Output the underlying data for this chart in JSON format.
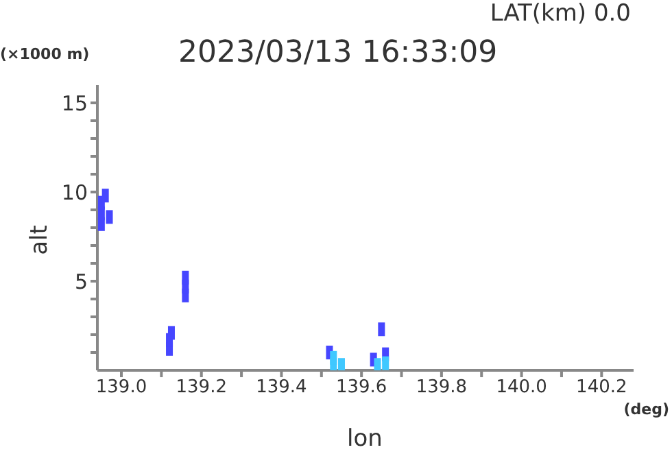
{
  "chart_data": {
    "type": "scatter",
    "title": "2023/03/13 16:33:09",
    "subtitle": "LAT(km) 0.0",
    "xlabel": "lon",
    "ylabel": "alt",
    "annotations": [
      "(×1000 m)",
      "(deg)"
    ],
    "marker": "square",
    "grid": false,
    "legend": false,
    "xlim": [
      138.94,
      140.28
    ],
    "xticks": [
      {
        "value": 139.0,
        "label": "139.0"
      },
      {
        "value": 139.1,
        "label": null
      },
      {
        "value": 139.2,
        "label": "139.2"
      },
      {
        "value": 139.3,
        "label": null
      },
      {
        "value": 139.4,
        "label": "139.4"
      },
      {
        "value": 139.5,
        "label": null
      },
      {
        "value": 139.6,
        "label": "139.6"
      },
      {
        "value": 139.7,
        "label": null
      },
      {
        "value": 139.8,
        "label": "139.8"
      },
      {
        "value": 139.9,
        "label": null
      },
      {
        "value": 140.0,
        "label": "140.0"
      },
      {
        "value": 140.1,
        "label": null
      },
      {
        "value": 140.2,
        "label": "140.2"
      }
    ],
    "ylim": [
      0,
      16
    ],
    "yticks": [
      {
        "value": 1,
        "label": null
      },
      {
        "value": 2,
        "label": null
      },
      {
        "value": 3,
        "label": null
      },
      {
        "value": 4,
        "label": null
      },
      5,
      {
        "value": 6,
        "label": null
      },
      {
        "value": 7,
        "label": null
      },
      {
        "value": 8,
        "label": null
      },
      {
        "value": 9,
        "label": null
      },
      10,
      {
        "value": 11,
        "label": null
      },
      {
        "value": 12,
        "label": null
      },
      {
        "value": 13,
        "label": null
      },
      {
        "value": 14,
        "label": null
      },
      15
    ],
    "series": [
      {
        "color": "#4646ff",
        "x": [
          138.95,
          138.95,
          138.95,
          138.96,
          138.97,
          139.12,
          139.12,
          139.125,
          139.16,
          139.16,
          139.16,
          139.65,
          139.52,
          139.63,
          139.66
        ],
        "values": [
          8.2,
          8.8,
          9.4,
          9.8,
          8.6,
          1.2,
          1.7,
          2.1,
          4.2,
          4.7,
          5.2,
          2.3,
          1.0,
          0.6,
          0.9
        ]
      },
      {
        "color": "#40c8ff",
        "x": [
          139.53,
          139.53,
          139.55,
          139.64,
          139.66
        ],
        "values": [
          0.3,
          0.7,
          0.3,
          0.3,
          0.4
        ]
      }
    ]
  }
}
